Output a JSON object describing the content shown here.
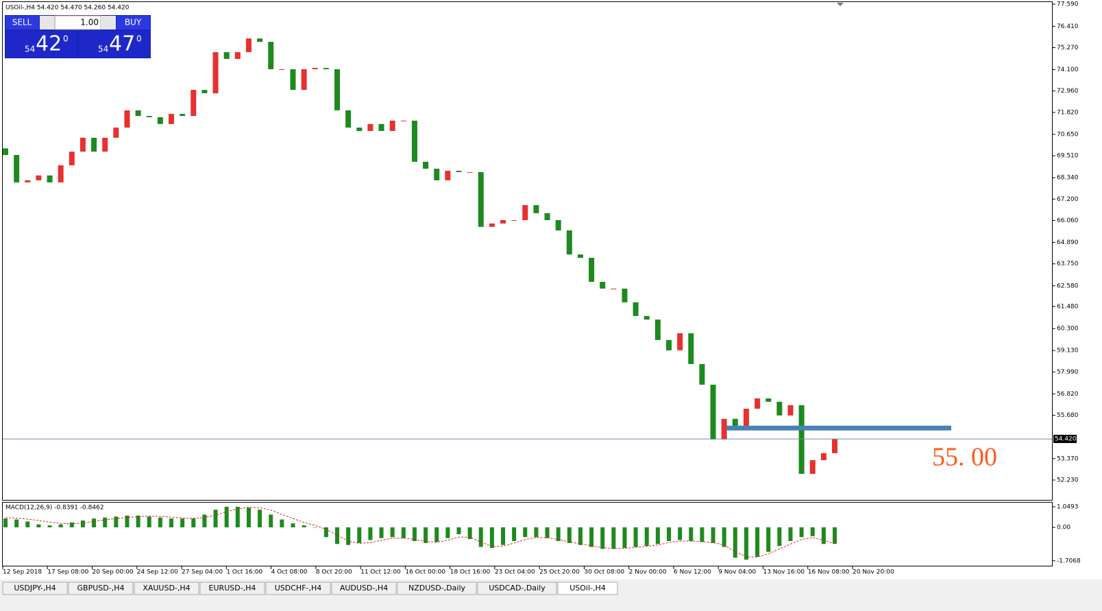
{
  "header": {
    "symbol_line": "USOil-,H4  54.420 54.470 54.260 54.420"
  },
  "trade_panel": {
    "sell": "SELL",
    "buy": "BUY",
    "lot": "1.00",
    "sell_price": {
      "big": "54",
      "main": "42",
      "sup": "0"
    },
    "buy_price": {
      "big": "54",
      "main": "47",
      "sup": "0"
    }
  },
  "chart_data": [
    {
      "type": "candlestick",
      "up_color": "#e83030",
      "down_color": "#1e8a1e",
      "ylim": [
        51.17,
        77.7
      ],
      "yticks": [
        {
          "value": 77.59,
          "label": "77.590"
        },
        {
          "value": 76.41,
          "label": "76.410"
        },
        {
          "value": 75.27,
          "label": "75.270"
        },
        {
          "value": 74.1,
          "label": "74.100"
        },
        {
          "value": 72.96,
          "label": "72.960"
        },
        {
          "value": 71.82,
          "label": "71.820"
        },
        {
          "value": 70.65,
          "label": "70.650"
        },
        {
          "value": 69.51,
          "label": "69.510"
        },
        {
          "value": 68.34,
          "label": "68.340"
        },
        {
          "value": 67.2,
          "label": "67.200"
        },
        {
          "value": 66.06,
          "label": "66.060"
        },
        {
          "value": 64.89,
          "label": "64.890"
        },
        {
          "value": 63.75,
          "label": "63.750"
        },
        {
          "value": 62.58,
          "label": "62.580"
        },
        {
          "value": 61.48,
          "label": "61.480"
        },
        {
          "value": 60.3,
          "label": "60.300"
        },
        {
          "value": 59.13,
          "label": "59.130"
        },
        {
          "value": 57.99,
          "label": "57.990"
        },
        {
          "value": 56.82,
          "label": "56.820"
        },
        {
          "value": 55.68,
          "label": "55.680"
        },
        {
          "value": 53.37,
          "label": "53.370"
        },
        {
          "value": 52.23,
          "label": "52.230"
        }
      ],
      "current_price": {
        "value": 54.42,
        "label": "54.420"
      },
      "annotation": {
        "value": 55.0,
        "label": "55. 00"
      },
      "x_labels": [
        "12 Sep 2018",
        "17 Sep 08:00",
        "20 Sep 00:00",
        "24 Sep 12:00",
        "27 Sep 04:00",
        "1 Oct 16:00",
        "4 Oct 08:00",
        "8 Oct 20:00",
        "11 Oct 12:00",
        "16 Oct 00:00",
        "18 Oct 16:00",
        "23 Oct 04:00",
        "25 Oct 20:00",
        "30 Oct 08:00",
        "2 Nov 00:00",
        "6 Nov 12:00",
        "9 Nov 04:00",
        "13 Nov 16:00",
        "16 Nov 08:00",
        "20 Nov 20:00"
      ],
      "open": [
        69.9,
        69.55,
        68.09,
        68.2,
        68.46,
        68.09,
        69.0,
        69.73,
        70.47,
        69.73,
        70.47,
        71.01,
        71.93,
        71.63,
        71.56,
        71.2,
        71.74,
        71.63,
        73.02,
        72.84,
        75.03,
        74.67,
        75.03,
        75.76,
        75.58,
        74.12,
        74.12,
        73.02,
        74.12,
        74.19,
        74.12,
        71.93,
        71.01,
        70.83,
        71.2,
        70.83,
        71.38,
        71.38,
        69.19,
        68.82,
        68.2,
        68.71,
        68.64,
        68.64,
        65.72,
        65.9,
        66.08,
        66.08,
        66.88,
        66.45,
        66.08,
        65.53,
        64.25,
        64.07,
        62.79,
        62.43,
        62.43,
        61.7,
        60.97,
        60.78,
        59.69,
        59.14,
        60.05,
        58.41,
        57.31,
        54.39,
        55.49,
        55.12,
        56.03,
        56.58,
        56.4,
        55.67,
        56.22,
        52.56,
        53.29,
        53.66
      ],
      "close": [
        69.55,
        68.09,
        68.2,
        68.46,
        68.09,
        69.0,
        69.73,
        70.47,
        69.73,
        70.47,
        71.01,
        71.93,
        71.63,
        71.56,
        71.2,
        71.74,
        71.63,
        73.02,
        72.84,
        75.03,
        74.67,
        75.03,
        75.76,
        75.58,
        74.12,
        74.12,
        73.02,
        74.12,
        74.19,
        74.12,
        71.93,
        71.01,
        70.83,
        71.2,
        70.83,
        71.38,
        71.38,
        69.19,
        68.82,
        68.2,
        68.71,
        68.64,
        68.64,
        65.72,
        65.9,
        66.08,
        66.08,
        66.88,
        66.45,
        66.08,
        65.53,
        64.25,
        64.07,
        62.79,
        62.43,
        62.43,
        61.7,
        60.97,
        60.78,
        59.69,
        59.14,
        60.05,
        58.41,
        57.31,
        54.39,
        55.49,
        55.12,
        56.03,
        56.58,
        56.4,
        55.67,
        56.22,
        52.56,
        53.29,
        53.66,
        54.42
      ]
    },
    {
      "type": "macd",
      "title": "MACD(12,26,9) -0.8391 -0.8462",
      "ylim": [
        -1.96,
        1.26
      ],
      "yticks": [
        1.0493,
        {
          "value": 0,
          "label": "0.00"
        },
        -1.7068
      ],
      "series": [
        {
          "name": "histogram",
          "color": "#1e8a1e",
          "values": [
            0.45,
            0.4,
            0.3,
            0.15,
            0.1,
            0.15,
            0.25,
            0.35,
            0.45,
            0.5,
            0.55,
            0.6,
            0.6,
            0.55,
            0.5,
            0.45,
            0.45,
            0.45,
            0.65,
            0.9,
            1.05,
            1.05,
            1.0,
            0.9,
            0.65,
            0.4,
            0.2,
            0.1,
            0.0,
            -0.5,
            -0.85,
            -0.9,
            -0.8,
            -0.65,
            -0.55,
            -0.5,
            -0.55,
            -0.7,
            -0.8,
            -0.75,
            -0.55,
            -0.35,
            -0.6,
            -1.0,
            -1.05,
            -0.9,
            -0.7,
            -0.5,
            -0.5,
            -0.55,
            -0.7,
            -0.8,
            -0.9,
            -1.0,
            -1.1,
            -1.1,
            -1.05,
            -1.0,
            -0.95,
            -0.85,
            -0.7,
            -0.65,
            -0.7,
            -0.75,
            -0.8,
            -1.0,
            -1.55,
            -1.65,
            -1.5,
            -1.25,
            -0.95,
            -0.7,
            -0.5,
            -0.45,
            -0.85,
            -0.8391
          ]
        },
        {
          "name": "signal",
          "color": "#e02020",
          "values": [
            0.5,
            0.47,
            0.42,
            0.35,
            0.27,
            0.2,
            0.18,
            0.22,
            0.3,
            0.38,
            0.45,
            0.5,
            0.55,
            0.57,
            0.56,
            0.52,
            0.48,
            0.46,
            0.5,
            0.62,
            0.8,
            0.95,
            1.02,
            1.0,
            0.88,
            0.66,
            0.45,
            0.25,
            0.1,
            -0.1,
            -0.4,
            -0.7,
            -0.82,
            -0.78,
            -0.66,
            -0.56,
            -0.55,
            -0.62,
            -0.72,
            -0.76,
            -0.66,
            -0.5,
            -0.5,
            -0.75,
            -0.98,
            -0.96,
            -0.8,
            -0.62,
            -0.52,
            -0.53,
            -0.63,
            -0.74,
            -0.84,
            -0.94,
            -1.04,
            -1.08,
            -1.07,
            -1.02,
            -0.97,
            -0.9,
            -0.78,
            -0.7,
            -0.7,
            -0.73,
            -0.78,
            -0.9,
            -1.25,
            -1.5,
            -1.52,
            -1.35,
            -1.1,
            -0.85,
            -0.62,
            -0.52,
            -0.65,
            -0.8462
          ]
        }
      ]
    }
  ],
  "tabs": [
    "USDJPY-,H4",
    "GBPUSD-,H4",
    "XAUUSD-,H4",
    "EURUSD-,H4",
    "USDCHF-,H4",
    "AUDUSD-,H4",
    "NZDUSD-,Daily",
    "USDCAD-,Daily",
    "USOil-,H4"
  ]
}
